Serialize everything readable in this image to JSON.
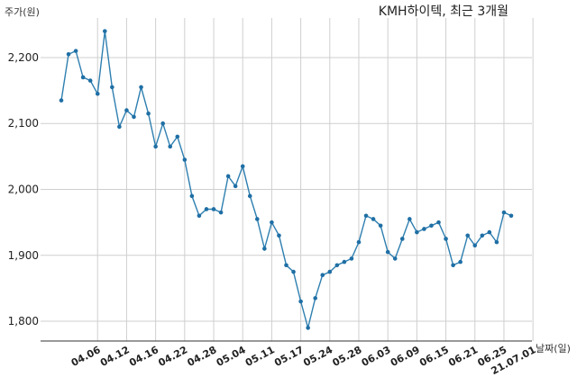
{
  "chart_data": {
    "type": "line",
    "title": "KMH하이텍, 최근 3개월",
    "ylabel": "주가(원)",
    "xlabel": "날짜(일)",
    "ylim": [
      1770,
      2260
    ],
    "yticks": [
      1800,
      1900,
      2000,
      2100,
      2200
    ],
    "ytick_labels": [
      "1,800",
      "1,900",
      "2,000",
      "2,100",
      "2,200"
    ],
    "grid": true,
    "xtick_labels": [
      "04.06",
      "04.12",
      "04.16",
      "04.22",
      "04.28",
      "05.04",
      "05.11",
      "05.17",
      "05.24",
      "05.28",
      "06.03",
      "06.09",
      "06.15",
      "06.21",
      "06.25",
      "21.07.01"
    ],
    "xtick_index": [
      5,
      9,
      13,
      17,
      21,
      25,
      29,
      33,
      37,
      41,
      45,
      49,
      53,
      57,
      61,
      65
    ],
    "series": [
      {
        "color": "#2e7fb0",
        "values": [
          2135,
          2205,
          2210,
          2170,
          2165,
          2145,
          2240,
          2155,
          2095,
          2120,
          2110,
          2155,
          2115,
          2065,
          2100,
          2065,
          2080,
          2045,
          1990,
          1960,
          1970,
          1970,
          1965,
          2020,
          2005,
          2035,
          1990,
          1955,
          1910,
          1950,
          1930,
          1885,
          1875,
          1830,
          1790,
          1835,
          1870,
          1875,
          1885,
          1890,
          1895,
          1920,
          1960,
          1955,
          1945,
          1905,
          1895,
          1925,
          1955,
          1935,
          1940,
          1945,
          1950,
          1925,
          1885,
          1890,
          1930,
          1915,
          1930,
          1935,
          1920,
          1965,
          1960
        ]
      }
    ]
  }
}
